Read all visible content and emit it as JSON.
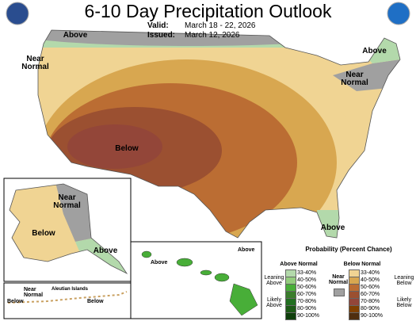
{
  "header": {
    "title": "6-10 Day Precipitation Outlook",
    "valid_label": "Valid:",
    "valid": "March 18 - 22, 2026",
    "issued_label": "Issued:",
    "issued": "March 12, 2026"
  },
  "map_labels": [
    "Above",
    "Near Normal",
    "Above",
    "Near Normal",
    "Below",
    "Above",
    "Near Normal",
    "Below",
    "Above",
    "Aleutian Islands",
    "Near Normal",
    "Below",
    "Below",
    "Above",
    "Above"
  ],
  "legend": {
    "title": "Probability (Percent Chance)",
    "above": {
      "heading": "Above Normal",
      "leaning": "Leaning Above",
      "likely": "Likely Above",
      "bins": [
        {
          "label": "33-40%",
          "color": "#b3d9ab"
        },
        {
          "label": "40-50%",
          "color": "#94cd7e"
        },
        {
          "label": "50-60%",
          "color": "#48ae38"
        },
        {
          "label": "60-70%",
          "color": "#3a7d2c"
        },
        {
          "label": "70-80%",
          "color": "#216f20"
        },
        {
          "label": "80-90%",
          "color": "#1c5a16"
        },
        {
          "label": "90-100%",
          "color": "#0f3f0b"
        }
      ]
    },
    "near": {
      "heading": "Near Normal",
      "color": "#a0a0a0"
    },
    "below": {
      "heading": "Below Normal",
      "leaning": "Leaning Below",
      "likely": "Likely Below",
      "bins": [
        {
          "label": "33-40%",
          "color": "#f0d493"
        },
        {
          "label": "40-50%",
          "color": "#d8a750"
        },
        {
          "label": "50-60%",
          "color": "#bb6d33"
        },
        {
          "label": "60-70%",
          "color": "#9b5031"
        },
        {
          "label": "70-80%",
          "color": "#934639"
        },
        {
          "label": "80-90%",
          "color": "#804000"
        },
        {
          "label": "90-100%",
          "color": "#4f2e0f"
        }
      ]
    }
  }
}
